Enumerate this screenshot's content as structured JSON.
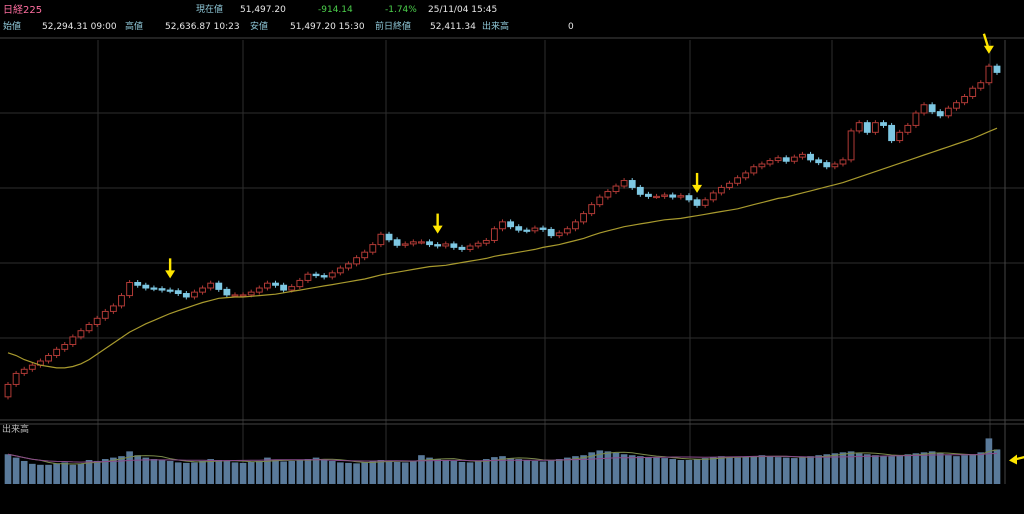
{
  "header": {
    "title": "日経225",
    "now_label": "現在値",
    "now_value": "51,497.20",
    "change": "-914.14",
    "change_pct": "-1.74%",
    "datetime": "25/11/04  15:45",
    "open_label": "始値",
    "open_value": "52,294.31  09:00",
    "high_label": "高値",
    "high_value": "52,636.87  10:23",
    "low_label": "安値",
    "low_value": "51,497.20  15:30",
    "prev_label": "前日終値",
    "prev_value": "52,411.34",
    "volume_label": "出来高",
    "volume_value": "0"
  },
  "colors": {
    "background": "#000000",
    "grid": "#2e2e2e",
    "up_candle": "#b03a36",
    "down_candle": "#7ec8e3",
    "moving_average": "#a89a2e",
    "volume_bar": "#5a7a9a",
    "volume_ma_short": "#7a8a4a",
    "volume_ma_long": "#8a4a8a",
    "arrow": "#ffe600",
    "title_text": "#ff6fa0",
    "label_text": "#8fc8d8",
    "value_text": "#e8e8e8",
    "change_text": "#4cd04c"
  },
  "chart_data": [
    {
      "type": "candlestick",
      "title": "",
      "closes": [
        31500,
        32300,
        32600,
        32900,
        33200,
        33600,
        34050,
        34400,
        34950,
        35400,
        35850,
        36300,
        36800,
        37200,
        37950,
        38900,
        38700,
        38500,
        38450,
        38350,
        38300,
        38100,
        37850,
        38200,
        38500,
        38850,
        38400,
        38000,
        38000,
        38000,
        38200,
        38500,
        38850,
        38700,
        38350,
        38600,
        39050,
        39500,
        39400,
        39300,
        39600,
        39950,
        40250,
        40700,
        41100,
        41650,
        42400,
        42000,
        41600,
        41700,
        41850,
        41850,
        41650,
        41550,
        41700,
        41450,
        41300,
        41550,
        41750,
        41950,
        42800,
        43300,
        42950,
        42700,
        42650,
        42850,
        42750,
        42300,
        42500,
        42800,
        43300,
        43900,
        44550,
        45100,
        45500,
        45900,
        46300,
        45800,
        45300,
        45150,
        45150,
        45250,
        45100,
        45200,
        44900,
        44500,
        44900,
        45400,
        45800,
        46100,
        46500,
        46850,
        47300,
        47500,
        47750,
        47950,
        47700,
        48000,
        48200,
        47800,
        47600,
        47300,
        47500,
        47800,
        49900,
        50500,
        49800,
        50500,
        50300,
        49200,
        49800,
        50300,
        51200,
        51800,
        51300,
        51000,
        51550,
        51950,
        52400,
        53000,
        53400,
        54600,
        54150
      ],
      "ma_start_index": 0,
      "ma_values": [
        33800,
        33600,
        33300,
        33100,
        32900,
        32800,
        32700,
        32700,
        32800,
        33000,
        33300,
        33700,
        34100,
        34500,
        34900,
        35300,
        35600,
        35900,
        36150,
        36400,
        36650,
        36850,
        37050,
        37250,
        37450,
        37600,
        37750,
        37800,
        37850,
        37850,
        37900,
        37950,
        38000,
        38050,
        38150,
        38250,
        38350,
        38450,
        38550,
        38650,
        38750,
        38850,
        38950,
        39050,
        39150,
        39300,
        39450,
        39550,
        39650,
        39750,
        39850,
        39950,
        40050,
        40100,
        40150,
        40250,
        40350,
        40450,
        40550,
        40650,
        40800,
        40900,
        41000,
        41100,
        41200,
        41300,
        41450,
        41550,
        41650,
        41800,
        41950,
        42100,
        42300,
        42500,
        42650,
        42800,
        42950,
        43050,
        43150,
        43250,
        43350,
        43450,
        43500,
        43550,
        43650,
        43750,
        43850,
        43950,
        44050,
        44150,
        44250,
        44400,
        44550,
        44700,
        44850,
        45000,
        45100,
        45250,
        45400,
        45550,
        45700,
        45850,
        46000,
        46150,
        46350,
        46550,
        46750,
        46950,
        47150,
        47350,
        47550,
        47750,
        47950,
        48150,
        48350,
        48550,
        48750,
        48950,
        49150,
        49350,
        49600,
        49850,
        50100
      ],
      "marked_indices": [
        20,
        53,
        85,
        121
      ]
    },
    {
      "type": "bar",
      "title": "出来高",
      "values": [
        62,
        55,
        48,
        42,
        40,
        40,
        43,
        45,
        40,
        42,
        50,
        48,
        52,
        55,
        58,
        68,
        60,
        55,
        52,
        50,
        48,
        45,
        44,
        45,
        48,
        52,
        50,
        48,
        45,
        44,
        46,
        48,
        55,
        50,
        47,
        48,
        50,
        52,
        55,
        52,
        48,
        45,
        44,
        43,
        45,
        48,
        50,
        48,
        46,
        45,
        47,
        60,
        55,
        52,
        50,
        48,
        46,
        45,
        47,
        52,
        56,
        58,
        54,
        52,
        50,
        48,
        47,
        50,
        52,
        55,
        58,
        60,
        66,
        70,
        68,
        65,
        62,
        60,
        58,
        56,
        55,
        54,
        52,
        50,
        50,
        52,
        54,
        56,
        58,
        56,
        55,
        57,
        58,
        60,
        58,
        56,
        55,
        54,
        56,
        58,
        60,
        62,
        64,
        66,
        68,
        64,
        62,
        60,
        58,
        58,
        60,
        62,
        64,
        66,
        68,
        64,
        60,
        58,
        60,
        62,
        66,
        95,
        72
      ],
      "marked_indices": [
        122
      ]
    }
  ]
}
